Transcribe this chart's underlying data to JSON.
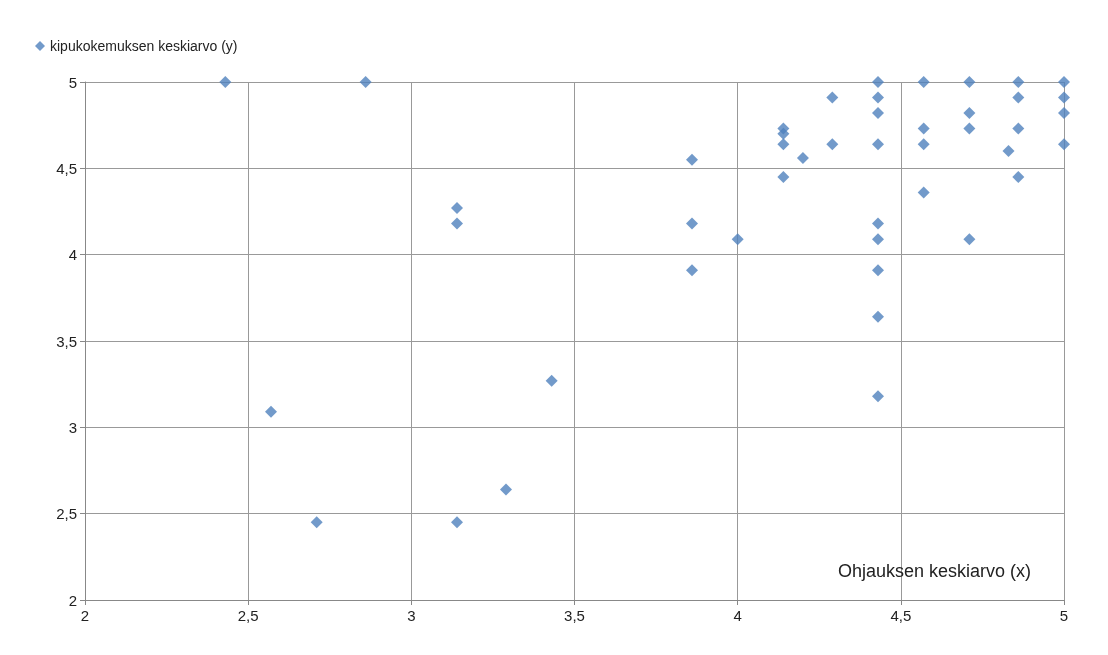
{
  "chart_data": {
    "type": "scatter",
    "xlabel": "Ohjauksen keskiarvo (x)",
    "x": [
      2.43,
      2.86,
      2.57,
      2.71,
      3.14,
      3.14,
      3.14,
      3.29,
      3.43,
      3.86,
      3.86,
      3.86,
      4.0,
      4.14,
      4.14,
      4.14,
      4.14,
      4.2,
      4.29,
      4.29,
      4.43,
      4.43,
      4.43,
      4.43,
      4.43,
      4.43,
      4.43,
      4.43,
      4.43,
      4.57,
      4.57,
      4.57,
      4.57,
      4.71,
      4.71,
      4.71,
      4.71,
      4.83,
      4.86,
      4.86,
      4.86,
      4.86,
      5.0,
      5.0,
      5.0,
      5.0
    ],
    "series": [
      {
        "name": "kipukokemuksen keskiarvo (y)",
        "color": "#4f81bd",
        "values": [
          5,
          5,
          3.09,
          2.45,
          4.27,
          4.18,
          2.45,
          2.64,
          3.27,
          4.55,
          4.18,
          3.91,
          4.09,
          4.73,
          4.7,
          4.64,
          4.45,
          4.56,
          4.91,
          4.64,
          5,
          4.91,
          4.82,
          4.64,
          4.18,
          4.09,
          3.91,
          3.64,
          3.18,
          5,
          4.73,
          4.64,
          4.36,
          5,
          4.82,
          4.73,
          4.09,
          4.6,
          5,
          4.91,
          4.73,
          4.45,
          5,
          4.91,
          4.82,
          4.64
        ]
      }
    ],
    "xlim": [
      2,
      5
    ],
    "ylim": [
      2,
      5
    ],
    "xticks": [
      2,
      {
        "value": 2.5,
        "label": "2,5"
      },
      3,
      {
        "value": 3.5,
        "label": "3,5"
      },
      4,
      {
        "value": 4.5,
        "label": "4,5"
      },
      5
    ],
    "yticks": [
      2,
      {
        "value": 2.5,
        "label": "2,5"
      },
      3,
      {
        "value": 3.5,
        "label": "3,5"
      },
      4,
      {
        "value": 4.5,
        "label": "4,5"
      },
      5
    ],
    "grid": true,
    "legend": "top left",
    "marker": "diamond"
  }
}
